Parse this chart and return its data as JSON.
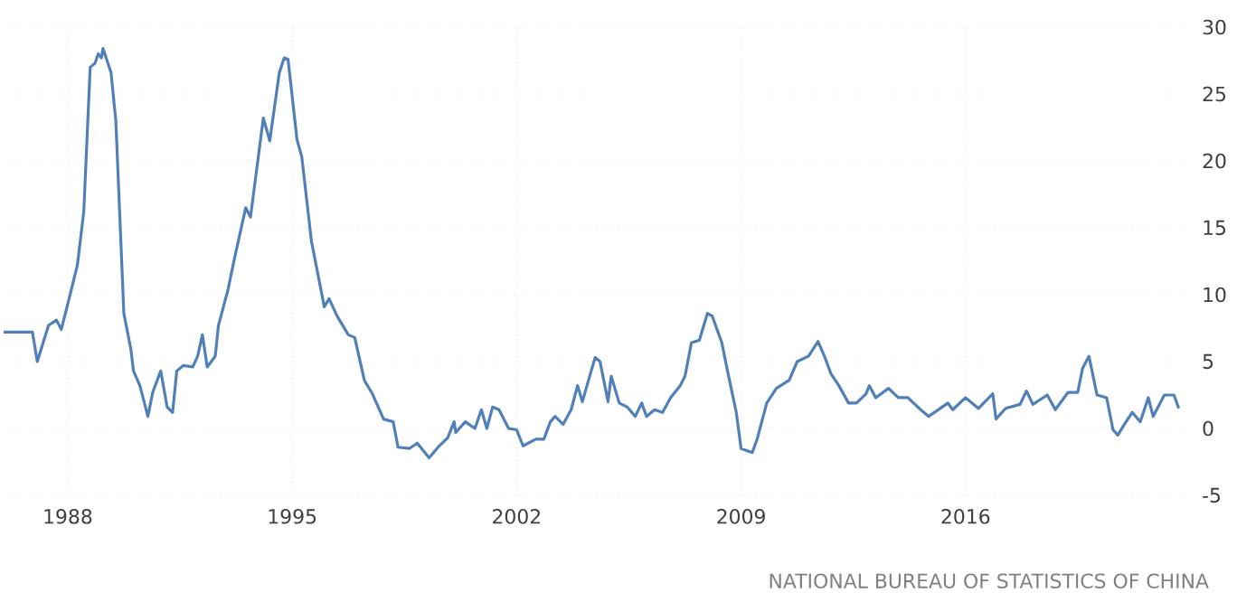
{
  "chart_data": {
    "type": "line",
    "annotations": [
      "NATIONAL BUREAU OF STATISTICS OF CHINA"
    ],
    "xlim": [
      1986,
      2023
    ],
    "xticks": [
      1988,
      1995,
      2002,
      2009,
      2016
    ],
    "ylim": [
      -5,
      30
    ],
    "yticks": [
      -5,
      0,
      5,
      10,
      15,
      20,
      25,
      30
    ],
    "grid": true,
    "series": [
      {
        "color": "#5180b8",
        "x": [
          1986.0,
          1986.9,
          1987.05,
          1987.4,
          1987.65,
          1987.8,
          1988.0,
          1988.3,
          1988.5,
          1988.7,
          1988.85,
          1988.95,
          1989.05,
          1989.1,
          1989.35,
          1989.5,
          1989.75,
          1989.97,
          1990.05,
          1990.25,
          1990.5,
          1990.65,
          1990.9,
          1991.1,
          1991.27,
          1991.4,
          1991.6,
          1991.9,
          1992.05,
          1992.2,
          1992.35,
          1992.6,
          1992.7,
          1993.0,
          1993.2,
          1993.55,
          1993.7,
          1993.9,
          1994.1,
          1994.3,
          1994.6,
          1994.75,
          1994.87,
          1995.15,
          1995.3,
          1995.6,
          1996.0,
          1996.15,
          1996.4,
          1996.75,
          1996.95,
          1997.25,
          1997.5,
          1997.85,
          1998.15,
          1998.3,
          1998.65,
          1998.9,
          1999.27,
          1999.55,
          1999.85,
          2000.05,
          2000.1,
          2000.4,
          2000.7,
          2000.9,
          2001.07,
          2001.25,
          2001.45,
          2001.75,
          2002.0,
          2002.2,
          2002.6,
          2002.85,
          2003.05,
          2003.2,
          2003.45,
          2003.7,
          2003.9,
          2004.05,
          2004.3,
          2004.45,
          2004.6,
          2004.85,
          2004.95,
          2005.2,
          2005.45,
          2005.7,
          2005.9,
          2006.05,
          2006.3,
          2006.55,
          2006.8,
          2007.1,
          2007.25,
          2007.45,
          2007.7,
          2007.95,
          2008.1,
          2008.4,
          2008.55,
          2008.85,
          2009.0,
          2009.35,
          2009.5,
          2009.8,
          2010.1,
          2010.5,
          2010.75,
          2011.1,
          2011.4,
          2011.6,
          2011.8,
          2012.05,
          2012.35,
          2012.6,
          2012.9,
          2013.0,
          2013.2,
          2013.6,
          2013.9,
          2014.2,
          2014.6,
          2014.85,
          2015.15,
          2015.45,
          2015.6,
          2016.0,
          2016.4,
          2016.85,
          2016.95,
          2017.25,
          2017.7,
          2017.9,
          2018.1,
          2018.55,
          2018.8,
          2019.2,
          2019.5,
          2019.65,
          2019.85,
          2020.1,
          2020.4,
          2020.6,
          2020.75,
          2020.95,
          2021.2,
          2021.45,
          2021.7,
          2021.85,
          2022.2,
          2022.5,
          2022.65
        ],
        "values": [
          7.2,
          7.2,
          5.0,
          7.7,
          8.1,
          7.4,
          9.3,
          12.2,
          16.2,
          27.0,
          27.3,
          28.0,
          27.7,
          28.4,
          26.6,
          23.0,
          8.6,
          5.9,
          4.3,
          3.2,
          0.9,
          2.7,
          4.3,
          1.6,
          1.2,
          4.3,
          4.7,
          4.6,
          5.4,
          7.0,
          4.6,
          5.4,
          7.7,
          10.4,
          12.7,
          16.5,
          15.8,
          19.5,
          23.2,
          21.5,
          26.6,
          27.7,
          27.6,
          21.6,
          20.3,
          14.0,
          9.1,
          9.7,
          8.4,
          7.0,
          6.8,
          3.6,
          2.6,
          0.7,
          0.5,
          -1.4,
          -1.5,
          -1.1,
          -2.2,
          -1.4,
          -0.7,
          0.5,
          -0.3,
          0.5,
          0.0,
          1.4,
          0.0,
          1.6,
          1.4,
          0.0,
          -0.1,
          -1.3,
          -0.8,
          -0.8,
          0.5,
          0.9,
          0.3,
          1.4,
          3.2,
          2.0,
          4.1,
          5.3,
          5.0,
          2.0,
          3.9,
          1.9,
          1.6,
          0.9,
          1.9,
          0.9,
          1.4,
          1.2,
          2.3,
          3.2,
          3.9,
          6.4,
          6.6,
          8.6,
          8.4,
          6.4,
          4.6,
          1.2,
          -1.5,
          -1.8,
          -0.8,
          1.9,
          3.0,
          3.6,
          5.0,
          5.4,
          6.5,
          5.4,
          4.1,
          3.2,
          1.9,
          1.9,
          2.6,
          3.2,
          2.3,
          3.0,
          2.3,
          2.3,
          1.4,
          0.9,
          1.4,
          1.9,
          1.4,
          2.3,
          1.5,
          2.6,
          0.7,
          1.5,
          1.8,
          2.8,
          1.8,
          2.5,
          1.4,
          2.7,
          2.7,
          4.5,
          5.4,
          2.5,
          2.3,
          -0.1,
          -0.5,
          0.3,
          1.2,
          0.5,
          2.3,
          0.9,
          2.5,
          2.5,
          1.5
        ]
      }
    ]
  }
}
